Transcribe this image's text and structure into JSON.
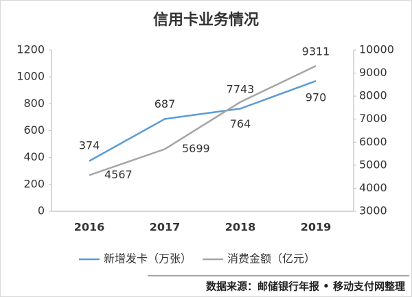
{
  "chart_data": {
    "type": "line",
    "title": "信用卡业务情况",
    "categories": [
      "2016",
      "2017",
      "2018",
      "2019"
    ],
    "series": [
      {
        "name": "新增发卡（万张）",
        "color": "#5b9bd5",
        "values": [
          374,
          687,
          764,
          970
        ]
      },
      {
        "name": "消费金额（亿元）",
        "color": "#a5a5a5",
        "values": [
          4567,
          5699,
          7743,
          9311
        ],
        "axis": "y2"
      }
    ],
    "ylim": [
      0,
      1200
    ],
    "yticks": [
      0,
      200,
      400,
      600,
      800,
      1000,
      1200
    ],
    "y2lim": [
      3000,
      10000
    ],
    "y2ticks": [
      3000,
      4000,
      5000,
      6000,
      7000,
      8000,
      9000,
      10000
    ],
    "legend": "bottom",
    "source": "数据来源：邮储银行年报 • 移动支付网整理"
  }
}
